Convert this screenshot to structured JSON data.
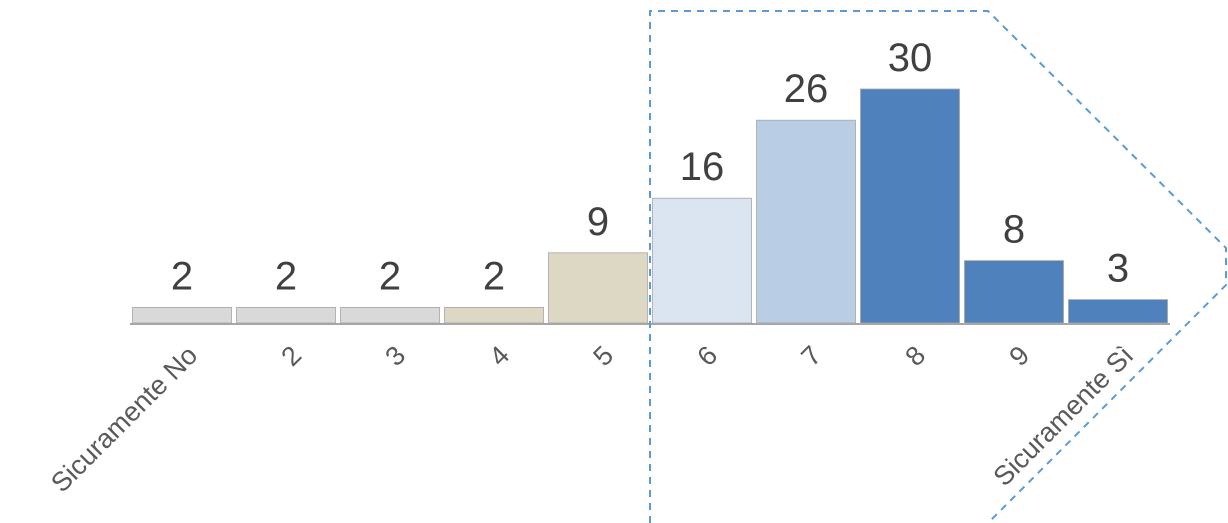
{
  "chart_data": {
    "type": "bar",
    "categories": [
      "Sicuramente No",
      "2",
      "3",
      "4",
      "5",
      "6",
      "7",
      "8",
      "9",
      "Sicuramente Sì"
    ],
    "values": [
      2,
      2,
      2,
      2,
      9,
      16,
      26,
      30,
      8,
      3
    ],
    "colors": [
      "#d9d9d9",
      "#d9d9d9",
      "#d9d9d9",
      "#ddd8c4",
      "#ddd8c4",
      "#dbe5f1",
      "#b9cde5",
      "#4f81bd",
      "#4f81bd",
      "#4f81bd"
    ],
    "title": "",
    "xlabel": "",
    "ylabel": "",
    "ylim": [
      0,
      30
    ],
    "grid": false,
    "legend": "none",
    "data_labels": true,
    "highlight": {
      "from_category": "6",
      "to_category": "Sicuramente Sì",
      "style": "dashed",
      "color": "#5b9bd5"
    }
  }
}
